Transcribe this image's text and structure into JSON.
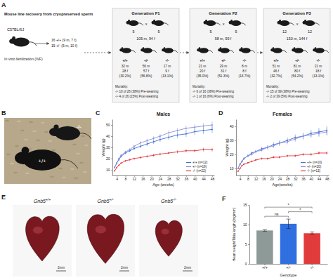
{
  "panel_labels": [
    "A",
    "B",
    "C",
    "D",
    "E",
    "F"
  ],
  "panel_a": {
    "source": {
      "title": "Mouse line recovery from cryopreserved sperm",
      "strain": "C57BL/6J",
      "method": "In vitro fertilization (IVF)",
      "offspring": [
        "16 +/+ (9 m, 7 f)",
        "15 +/- (5 m, 10 f)"
      ]
    },
    "generations": [
      {
        "title": "Generation F1",
        "cross": [
          "5",
          "x",
          "5"
        ],
        "total": "105 m, 94 f",
        "genotypes": [
          {
            "genotype": "+/+",
            "counts": [
              "32 m",
              "28 f",
              "(30.2%)"
            ]
          },
          {
            "genotype": "+/-",
            "counts": [
              "56 m",
              "57 f",
              "(56.8%)"
            ]
          },
          {
            "genotype": "-/-",
            "counts": [
              "17 m",
              "9 f",
              "(13.1%)"
            ]
          }
        ],
        "mortality": [
          "Mortality:",
          "-/- 10 of 26 (38%) Pre-weaning",
          "-/- 4 of 26 (15%) Post-weaning"
        ]
      },
      {
        "title": "Generation F2",
        "cross": [
          "5",
          "x",
          "5"
        ],
        "total": "58 m, 59 f",
        "genotypes": [
          {
            "genotype": "+/+",
            "counts": [
              "21 m",
              "20 f",
              "(35.0%)"
            ]
          },
          {
            "genotype": "+/-",
            "counts": [
              "29 m",
              "31 f",
              "(51.3%)"
            ]
          },
          {
            "genotype": "-/-",
            "counts": [
              "8 m",
              "8 f",
              "(13.7%)"
            ]
          }
        ],
        "mortality": [
          "Mortality:",
          "-/- 6 of 16 (38%) Pre-weaning",
          "-/- 1 of 16 (6%) Post-weaning"
        ]
      },
      {
        "title": "Generation F3",
        "cross": [
          "12",
          "x",
          "12"
        ],
        "total": "153 m, 144 f",
        "genotypes": [
          {
            "genotype": "+/+",
            "counts": [
              "51 m",
              "46 f",
              "(32.7%)"
            ]
          },
          {
            "genotype": "+/-",
            "counts": [
              "81 m",
              "80 f",
              "(54.2%)"
            ]
          },
          {
            "genotype": "-/-",
            "counts": [
              "21 m",
              "18 f",
              "(13.1%)"
            ]
          }
        ],
        "mortality": [
          "Mortality:",
          "-/- 15 of 39 (38%) Pre-weaning",
          "-/- 2 of 39 (5%) Post-weaning"
        ]
      }
    ]
  },
  "panel_b": {
    "genotypes": [
      "+/+",
      "-/-"
    ]
  },
  "panel_e": {
    "hearts": [
      {
        "gene": "Gnb5",
        "genotype": "+/+"
      },
      {
        "gene": "Gnb5",
        "genotype": "+/-"
      },
      {
        "gene": "Gnb5",
        "genotype": "-/-"
      }
    ],
    "scale": "2mm"
  },
  "chart_data": [
    {
      "type": "line",
      "title": "Males",
      "x_label": "Age (weeks)",
      "y_label": "Weight (g)",
      "x": [
        3,
        4,
        5,
        6,
        8,
        10,
        12,
        15,
        18,
        21,
        24,
        28,
        32,
        36,
        40,
        44,
        48
      ],
      "xlim": [
        2,
        49
      ],
      "xticks": [
        4,
        8,
        12,
        16,
        20,
        24,
        28,
        32,
        36,
        40,
        44,
        48
      ],
      "ylim": [
        5,
        55
      ],
      "yticks": [
        10,
        20,
        30,
        40,
        50
      ],
      "legend": "lower right",
      "series": [
        {
          "name": "+/+ (n=12)",
          "color": "#3b6fd6",
          "marker": "circle",
          "values": [
            12,
            16,
            19,
            22,
            25,
            27,
            29,
            31,
            33,
            35,
            37,
            39,
            41,
            42,
            44,
            45,
            46
          ],
          "errors": [
            0.8,
            1,
            1,
            1,
            1.2,
            1.3,
            1.5,
            1.6,
            1.8,
            2,
            2.2,
            2.4,
            2.6,
            2.8,
            3,
            3,
            3.2
          ]
        },
        {
          "name": "+/- (n=19)",
          "color": "#8d8fda",
          "marker": "circle",
          "values": [
            12,
            16,
            20,
            23,
            26,
            28,
            31,
            34,
            36,
            38,
            40,
            43,
            45,
            47,
            48,
            49,
            50
          ],
          "errors": [
            0.7,
            0.8,
            0.9,
            1,
            1.1,
            1.2,
            1.4,
            1.5,
            1.7,
            1.9,
            2,
            2.2,
            2.4,
            2.5,
            2.7,
            2.8,
            3
          ]
        },
        {
          "name": "-/- (n=22)",
          "color": "#e0393e",
          "marker": "circle",
          "values": [
            9,
            12,
            14,
            16,
            18,
            19,
            20,
            21,
            22,
            23,
            24,
            25,
            26,
            27,
            27,
            28,
            28
          ],
          "errors": [
            0.5,
            0.6,
            0.7,
            0.8,
            0.8,
            0.9,
            1,
            1,
            1.1,
            1.2,
            1.2,
            1.3,
            1.4,
            1.5,
            1.5,
            1.6,
            1.7
          ]
        }
      ]
    },
    {
      "type": "line",
      "title": "Females",
      "x_label": "Age(weeks)",
      "y_label": "Weight (g)",
      "x": [
        3,
        4,
        5,
        6,
        8,
        10,
        12,
        15,
        18,
        21,
        24,
        28,
        32,
        36,
        40,
        44,
        48
      ],
      "xlim": [
        2,
        49
      ],
      "xticks": [
        4,
        8,
        12,
        16,
        20,
        24,
        28,
        32,
        36,
        40,
        44,
        48
      ],
      "ylim": [
        5,
        45
      ],
      "yticks": [
        10,
        20,
        30,
        40
      ],
      "legend": "lower right",
      "series": [
        {
          "name": "+/+ (n=10)",
          "color": "#3b6fd6",
          "marker": "circle",
          "values": [
            10,
            13,
            15,
            17,
            19,
            21,
            22,
            24,
            25,
            27,
            28,
            30,
            32,
            33,
            35,
            36,
            37
          ],
          "errors": [
            0.6,
            0.7,
            0.8,
            0.9,
            1,
            1.1,
            1.2,
            1.4,
            1.5,
            1.7,
            1.8,
            2,
            2.2,
            2.4,
            2.6,
            2.8,
            3
          ]
        },
        {
          "name": "+/- (n=20)",
          "color": "#8d8fda",
          "marker": "circle",
          "values": [
            10,
            13,
            15,
            17,
            19,
            20,
            22,
            23,
            25,
            26,
            28,
            29,
            31,
            33,
            34,
            35,
            36
          ],
          "errors": [
            0.5,
            0.6,
            0.7,
            0.8,
            0.9,
            1,
            1.1,
            1.2,
            1.3,
            1.5,
            1.6,
            1.8,
            2,
            2.1,
            2.3,
            2.5,
            2.6
          ]
        },
        {
          "name": "-/- (n=13)",
          "color": "#e0393e",
          "marker": "circle",
          "values": [
            8,
            10,
            12,
            13,
            14,
            15,
            16,
            17,
            17,
            18,
            18,
            19,
            19,
            20,
            20,
            21,
            21
          ],
          "errors": [
            0.4,
            0.5,
            0.5,
            0.6,
            0.6,
            0.7,
            0.7,
            0.8,
            0.8,
            0.9,
            0.9,
            1,
            1,
            1.1,
            1.1,
            1.2,
            1.2
          ]
        }
      ]
    },
    {
      "type": "bar",
      "x_label": "Genotype",
      "y_label": "Heart weight/Tibia length (mg/mm)",
      "categories": [
        "+/+",
        "+/-",
        "-/-"
      ],
      "values": [
        8.5,
        10.2,
        7.8
      ],
      "errors": [
        0.2,
        1.2,
        0.3
      ],
      "colors": [
        "#8e9a98",
        "#2f6fe0",
        "#e23b3b"
      ],
      "ylim": [
        0,
        15
      ],
      "yticks": [
        0,
        5,
        10,
        15
      ],
      "annotations": [
        {
          "groups": [
            "+/+",
            "+/-"
          ],
          "label": "ns"
        },
        {
          "groups": [
            "+/-",
            "-/-"
          ],
          "label": "*"
        },
        {
          "groups": [
            "+/+",
            "-/-"
          ],
          "label": "*"
        }
      ]
    }
  ]
}
